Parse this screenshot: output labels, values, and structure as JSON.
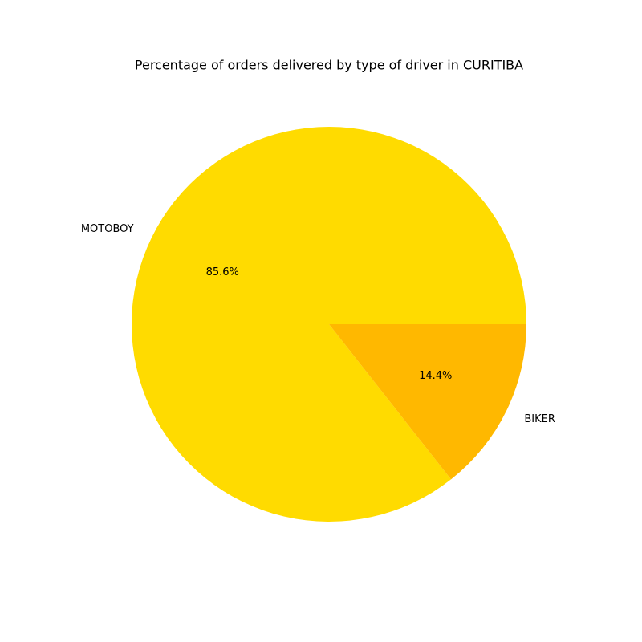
{
  "chart_data": {
    "type": "pie",
    "title": "Percentage of orders delivered by type of driver in CURITIBA",
    "start_angle_deg": 0,
    "direction": "counterclockwise",
    "slices": [
      {
        "label": "MOTOBOY",
        "value": 85.6,
        "pct_label": "85.6%",
        "color": "#FFDB00"
      },
      {
        "label": "BIKER",
        "value": 14.4,
        "pct_label": "14.4%",
        "color": "#FFB800"
      }
    ]
  }
}
